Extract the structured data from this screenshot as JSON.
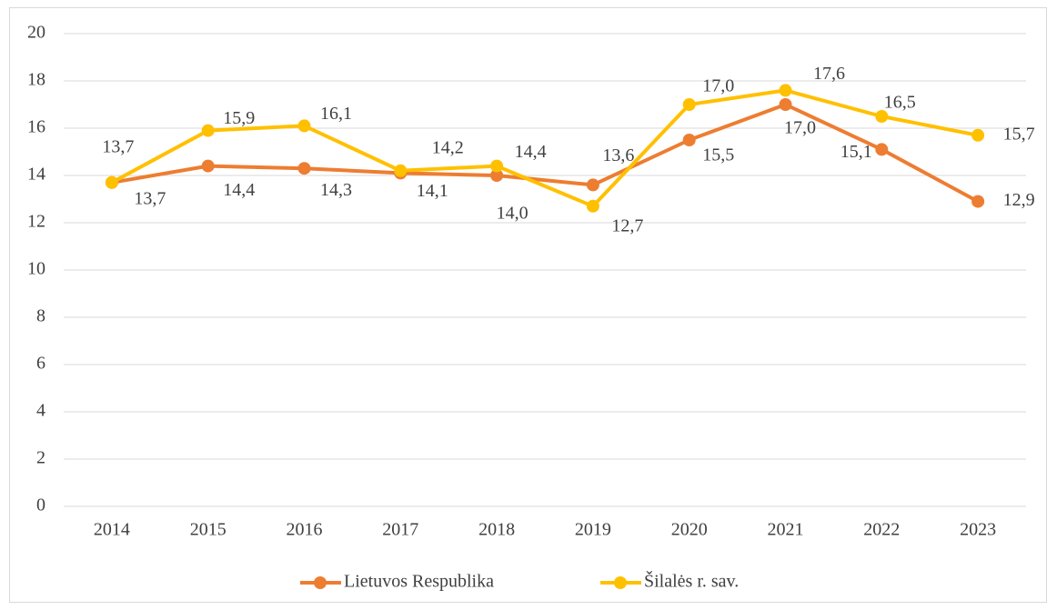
{
  "chart_data": {
    "type": "line",
    "categories": [
      "2014",
      "2015",
      "2016",
      "2017",
      "2018",
      "2019",
      "2020",
      "2021",
      "2022",
      "2023"
    ],
    "series": [
      {
        "name": "Lietuvos Respublika",
        "color": "#ED7D31",
        "values": [
          13.7,
          14.4,
          14.3,
          14.1,
          14.0,
          13.6,
          15.5,
          17.0,
          15.1,
          12.9
        ],
        "value_labels": [
          "13,7",
          "14,4",
          "14,3",
          "14,1",
          "14,0",
          "13,6",
          "15,5",
          "17,0",
          "15,1",
          "12,9"
        ]
      },
      {
        "name": "Šilalės r. sav.",
        "color": "#FFC000",
        "values": [
          13.7,
          15.9,
          16.1,
          14.2,
          14.4,
          12.7,
          17.0,
          17.6,
          16.5,
          15.7
        ],
        "value_labels": [
          "13,7",
          "15,9",
          "16,1",
          "14,2",
          "14,4",
          "12,7",
          "17,0",
          "17,6",
          "16,5",
          "15,7"
        ]
      }
    ],
    "ylim": [
      0,
      20
    ],
    "yticks": [
      0,
      2,
      4,
      6,
      8,
      10,
      12,
      14,
      16,
      18,
      20
    ],
    "grid": true,
    "legend": "bottom"
  }
}
